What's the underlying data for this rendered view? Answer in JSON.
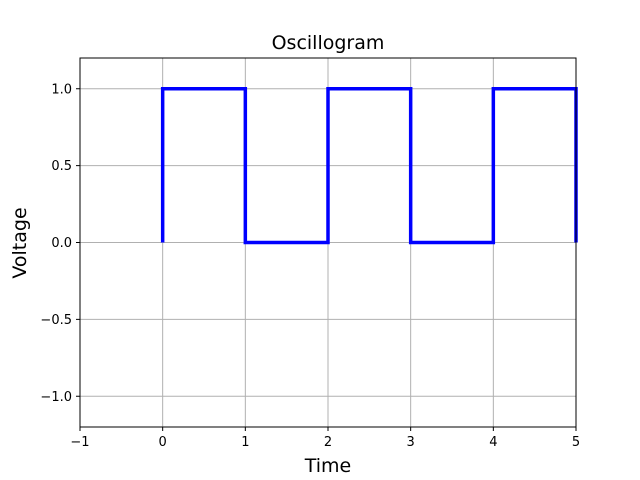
{
  "chart_data": {
    "type": "line",
    "title": "Oscillogram",
    "xlabel": "Time",
    "ylabel": "Voltage",
    "xlim": [
      -1,
      5
    ],
    "ylim": [
      -1.2,
      1.2
    ],
    "grid": true,
    "x_ticks": [
      -1,
      0,
      1,
      2,
      3,
      4,
      5
    ],
    "x_tick_labels": [
      "−1",
      "0",
      "1",
      "2",
      "3",
      "4",
      "5"
    ],
    "y_ticks": [
      -1.0,
      -0.5,
      0.0,
      0.5,
      1.0
    ],
    "y_tick_labels": [
      "−1.0",
      "−0.5",
      "0.0",
      "0.5",
      "1.0"
    ],
    "series": [
      {
        "color": "#0000ff",
        "x": [
          0,
          0,
          1,
          1,
          2,
          2,
          3,
          3,
          4,
          4,
          5,
          5
        ],
        "y": [
          0,
          1,
          1,
          0,
          0,
          1,
          1,
          0,
          0,
          1,
          1,
          0
        ]
      }
    ]
  }
}
